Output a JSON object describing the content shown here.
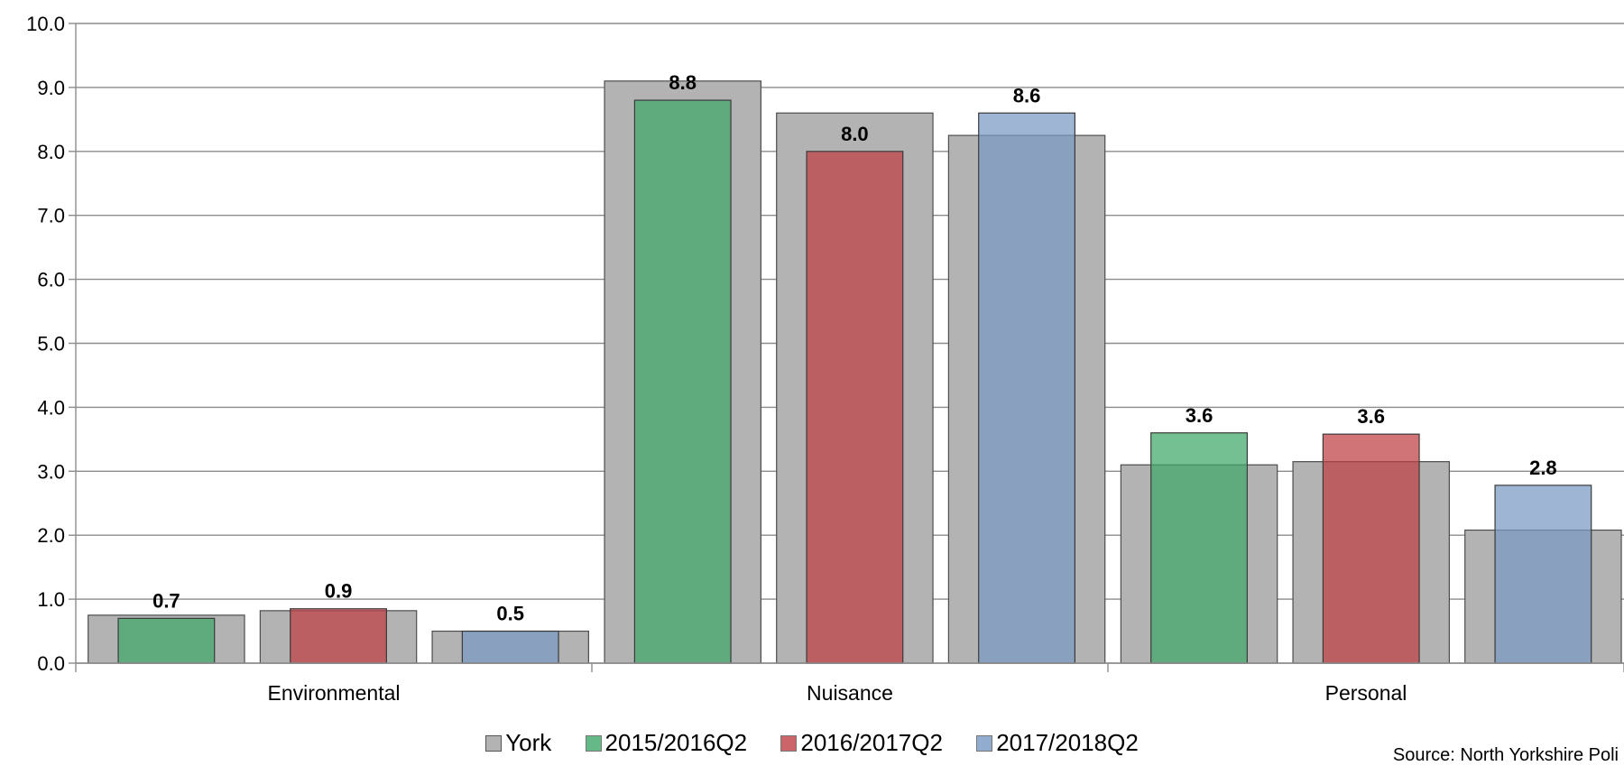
{
  "chart_data": {
    "type": "bar",
    "ylim": [
      0,
      10
    ],
    "yticks": [
      "0.0",
      "1.0",
      "2.0",
      "3.0",
      "4.0",
      "5.0",
      "6.0",
      "7.0",
      "8.0",
      "9.0",
      "10.0"
    ],
    "grid": true,
    "categories": [
      "Environmental",
      "Nuisance",
      "Personal"
    ],
    "series": [
      {
        "name": "2015/2016Q2",
        "color": "#3fa868",
        "values": [
          0.7,
          8.8,
          3.6
        ],
        "york": [
          0.75,
          9.1,
          3.1
        ],
        "labels": [
          "0.7",
          "8.8",
          "3.6"
        ]
      },
      {
        "name": "2016/2017Q2",
        "color": "#bf3f44",
        "values": [
          0.85,
          8.0,
          3.58
        ],
        "york": [
          0.82,
          8.6,
          3.15
        ],
        "labels": [
          "0.9",
          "8.0",
          "3.6"
        ]
      },
      {
        "name": "2017/2018Q2",
        "color": "#7898c4",
        "values": [
          0.5,
          8.6,
          2.78
        ],
        "york": [
          0.5,
          8.25,
          2.08
        ],
        "labels": [
          "0.5",
          "8.6",
          "2.8"
        ]
      }
    ],
    "york_name": "York",
    "york_color": "#b3b3b3",
    "legend_position": "bottom"
  },
  "source_text": "Source: North Yorkshire Poli"
}
